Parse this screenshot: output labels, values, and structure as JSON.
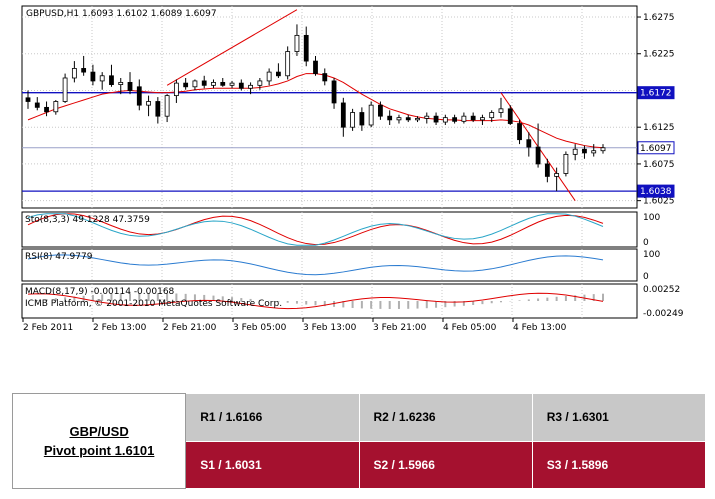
{
  "chart_data": {
    "type": "candlestick",
    "symbol_header": "GBPUSD,H1  1.6093 1.6102 1.6089 1.6097",
    "y_ticks": [
      "1.6275",
      "1.6225",
      "1.6175",
      "1.6125",
      "1.6075",
      "1.6025"
    ],
    "ylim": [
      1.6015,
      1.629
    ],
    "x_ticks": [
      "2 Feb 2011",
      "2 Feb 13:00",
      "2 Feb 21:00",
      "3 Feb 05:00",
      "3 Feb 13:00",
      "3 Feb 21:00",
      "4 Feb 05:00",
      "4 Feb 13:00"
    ],
    "horizontal_lines": [
      {
        "label": "1.6172",
        "value": 1.6172,
        "color": "#1010c0"
      },
      {
        "label": "1.6097",
        "value": 1.6097,
        "color": "#9aa0c8"
      },
      {
        "label": "1.6038",
        "value": 1.6038,
        "color": "#1010c0"
      }
    ],
    "candles": [
      [
        1.6165,
        1.6175,
        1.615,
        1.616
      ],
      [
        1.6158,
        1.6166,
        1.6148,
        1.6152
      ],
      [
        1.6152,
        1.616,
        1.614,
        1.6146
      ],
      [
        1.6146,
        1.6162,
        1.6142,
        1.616
      ],
      [
        1.616,
        1.6198,
        1.6158,
        1.6192
      ],
      [
        1.6192,
        1.6215,
        1.6186,
        1.6205
      ],
      [
        1.6205,
        1.6222,
        1.6195,
        1.62
      ],
      [
        1.62,
        1.621,
        1.6182,
        1.6188
      ],
      [
        1.6188,
        1.62,
        1.6176,
        1.6195
      ],
      [
        1.6195,
        1.621,
        1.618,
        1.6183
      ],
      [
        1.6183,
        1.6192,
        1.617,
        1.6186
      ],
      [
        1.6186,
        1.62,
        1.617,
        1.6175
      ],
      [
        1.618,
        1.619,
        1.6148,
        1.6155
      ],
      [
        1.6155,
        1.6168,
        1.614,
        1.616
      ],
      [
        1.616,
        1.6166,
        1.613,
        1.614
      ],
      [
        1.614,
        1.617,
        1.6132,
        1.6168
      ],
      [
        1.6168,
        1.619,
        1.6158,
        1.6185
      ],
      [
        1.6185,
        1.6192,
        1.6176,
        1.618
      ],
      [
        1.618,
        1.619,
        1.6175,
        1.6188
      ],
      [
        1.6188,
        1.6195,
        1.6178,
        1.6182
      ],
      [
        1.6182,
        1.619,
        1.6178,
        1.6186
      ],
      [
        1.6186,
        1.6192,
        1.618,
        1.6182
      ],
      [
        1.6182,
        1.6188,
        1.6178,
        1.6185
      ],
      [
        1.6185,
        1.619,
        1.6175,
        1.6178
      ],
      [
        1.6178,
        1.6186,
        1.617,
        1.6182
      ],
      [
        1.6182,
        1.6192,
        1.6176,
        1.6188
      ],
      [
        1.6188,
        1.6205,
        1.6182,
        1.62
      ],
      [
        1.62,
        1.6212,
        1.6192,
        1.6195
      ],
      [
        1.6195,
        1.6235,
        1.619,
        1.6228
      ],
      [
        1.6228,
        1.6265,
        1.6222,
        1.625
      ],
      [
        1.625,
        1.6262,
        1.6208,
        1.6215
      ],
      [
        1.6215,
        1.6222,
        1.6195,
        1.6198
      ],
      [
        1.6198,
        1.6205,
        1.6182,
        1.6188
      ],
      [
        1.6188,
        1.6192,
        1.615,
        1.6158
      ],
      [
        1.6158,
        1.6165,
        1.6112,
        1.6125
      ],
      [
        1.6125,
        1.615,
        1.612,
        1.6145
      ],
      [
        1.6145,
        1.6152,
        1.612,
        1.6128
      ],
      [
        1.6128,
        1.616,
        1.6125,
        1.6155
      ],
      [
        1.6155,
        1.616,
        1.6135,
        1.614
      ],
      [
        1.614,
        1.6148,
        1.6128,
        1.6135
      ],
      [
        1.6135,
        1.6142,
        1.613,
        1.6138
      ],
      [
        1.6138,
        1.6142,
        1.6132,
        1.6135
      ],
      [
        1.6135,
        1.614,
        1.6132,
        1.6137
      ],
      [
        1.6137,
        1.6145,
        1.613,
        1.614
      ],
      [
        1.614,
        1.6145,
        1.6128,
        1.6132
      ],
      [
        1.6132,
        1.6142,
        1.6128,
        1.6138
      ],
      [
        1.6138,
        1.6142,
        1.613,
        1.6133
      ],
      [
        1.6133,
        1.6145,
        1.613,
        1.614
      ],
      [
        1.614,
        1.6145,
        1.6132,
        1.6135
      ],
      [
        1.6135,
        1.6142,
        1.6128,
        1.6138
      ],
      [
        1.6138,
        1.6148,
        1.6132,
        1.6145
      ],
      [
        1.6145,
        1.6165,
        1.6138,
        1.615
      ],
      [
        1.615,
        1.6155,
        1.6128,
        1.613
      ],
      [
        1.613,
        1.6135,
        1.6102,
        1.6108
      ],
      [
        1.6108,
        1.6118,
        1.6085,
        1.6098
      ],
      [
        1.6098,
        1.613,
        1.607,
        1.6075
      ],
      [
        1.6075,
        1.6082,
        1.605,
        1.6058
      ],
      [
        1.6058,
        1.607,
        1.6038,
        1.6062
      ],
      [
        1.6062,
        1.6092,
        1.6058,
        1.6088
      ],
      [
        1.6088,
        1.6102,
        1.608,
        1.6095
      ],
      [
        1.6095,
        1.61,
        1.6082,
        1.609
      ],
      [
        1.609,
        1.6102,
        1.6085,
        1.6093
      ],
      [
        1.6093,
        1.6102,
        1.6089,
        1.6097
      ]
    ],
    "moving_average": [
      1.6135,
      1.614,
      1.6145,
      1.615,
      1.6154,
      1.6158,
      1.6162,
      1.6166,
      1.617,
      1.6172,
      1.6174,
      1.6175,
      1.6174,
      1.6173,
      1.6172,
      1.6172,
      1.6173,
      1.6174,
      1.6176,
      1.6177,
      1.6178,
      1.6178,
      1.6178,
      1.6178,
      1.6178,
      1.6179,
      1.6181,
      1.6184,
      1.6188,
      1.6194,
      1.6198,
      1.6198,
      1.6196,
      1.6192,
      1.6186,
      1.6178,
      1.617,
      1.6163,
      1.6156,
      1.615,
      1.6146,
      1.6142,
      1.6139,
      1.6137,
      1.6136,
      1.6135,
      1.6135,
      1.6134,
      1.6134,
      1.6134,
      1.6134,
      1.6135,
      1.6134,
      1.6132,
      1.6128,
      1.6122,
      1.6116,
      1.611,
      1.6106,
      1.6103,
      1.61,
      1.6098,
      1.6097
    ],
    "trend_lines": [
      {
        "from": [
          15,
          1.6182
        ],
        "to": [
          29,
          1.6285
        ]
      },
      {
        "from": [
          51,
          1.6172
        ],
        "to": [
          59,
          1.6025
        ]
      }
    ],
    "sub_panels": [
      {
        "label": "Sto(8,3,3) 49.1228 47.3759",
        "ticks": [
          "100",
          "0"
        ]
      },
      {
        "label": "RSI(8) 47.9779",
        "ticks": [
          "100",
          "0"
        ]
      },
      {
        "label": "MACD(8,17,9) -0.00114 -0.00168",
        "ticks": [
          "0.00252",
          "-0.00249"
        ]
      }
    ],
    "copyright": "ICMB Platform, © 2001-2010 MetaQuotes Software Corp."
  },
  "pivot": {
    "pair": "GBP/USD",
    "pivot_label": "Pivot point 1.6101",
    "resistance": [
      "R1 / 1.6166",
      "R2 / 1.6236",
      "R3 / 1.6301"
    ],
    "support": [
      "S1 / 1.6031",
      "S2 / 1.5966",
      "S3 / 1.5896"
    ]
  }
}
